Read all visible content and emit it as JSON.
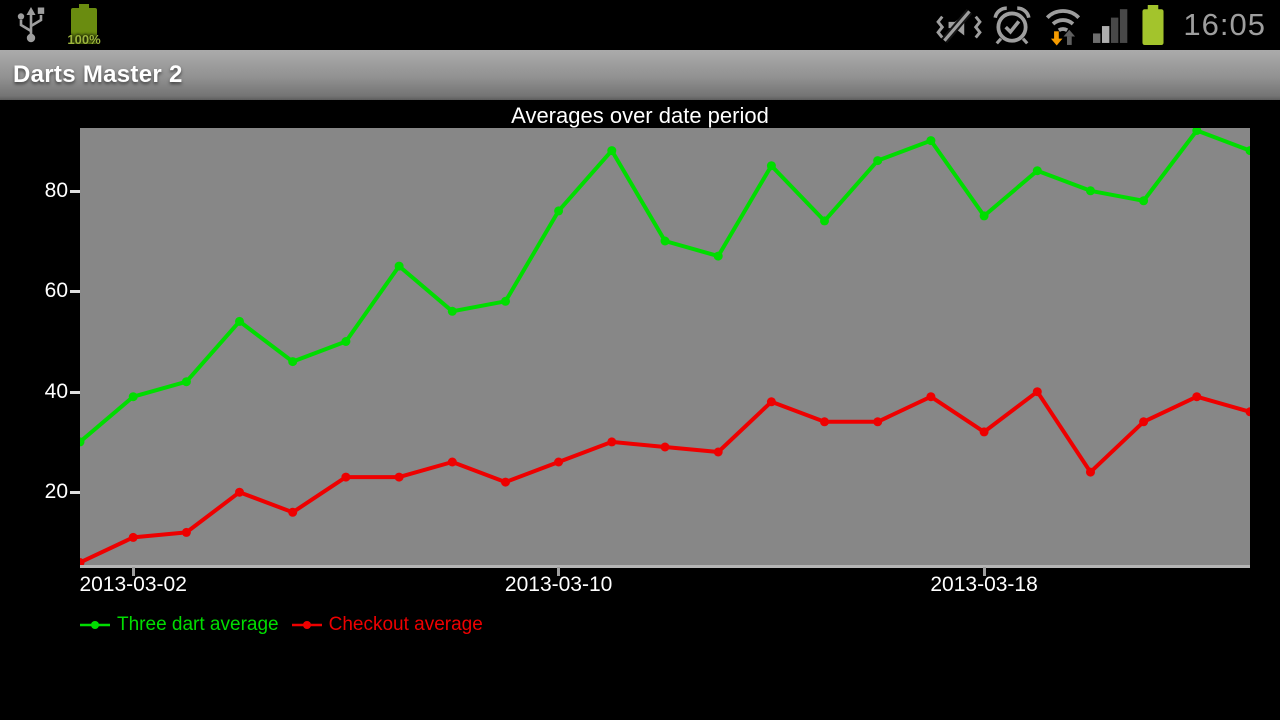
{
  "status_bar": {
    "battery_percent": "100%",
    "time": "16:05",
    "left_icons": [
      "usb-icon",
      "battery-charging-icon"
    ],
    "right_icons": [
      "vibrate-icon",
      "alarm-icon",
      "wifi-icon",
      "signal-icon",
      "battery-icon"
    ],
    "accent_orange": "#f59b00",
    "icon_gray": "#9e9e9e",
    "battery_green": "#a3c42c"
  },
  "app": {
    "title": "Darts Master 2"
  },
  "chart_data": {
    "type": "line",
    "title": "Averages over date period",
    "x": [
      "2013-03-01",
      "2013-03-02",
      "2013-03-03",
      "2013-03-04",
      "2013-03-05",
      "2013-03-06",
      "2013-03-07",
      "2013-03-08",
      "2013-03-09",
      "2013-03-10",
      "2013-03-11",
      "2013-03-12",
      "2013-03-13",
      "2013-03-14",
      "2013-03-15",
      "2013-03-16",
      "2013-03-17",
      "2013-03-18",
      "2013-03-19",
      "2013-03-20",
      "2013-03-21",
      "2013-03-22",
      "2013-03-23"
    ],
    "series": [
      {
        "name": "Three dart average",
        "color": "#00dd00",
        "values": [
          30,
          39,
          42,
          54,
          46,
          50,
          65,
          56,
          58,
          76,
          88,
          70,
          67,
          85,
          74,
          86,
          90,
          75,
          84,
          80,
          78,
          92,
          88
        ]
      },
      {
        "name": "Checkout average",
        "color": "#ee0000",
        "values": [
          6,
          11,
          12,
          20,
          16,
          23,
          23,
          26,
          22,
          26,
          30,
          29,
          28,
          38,
          34,
          34,
          39,
          32,
          40,
          24,
          34,
          39,
          36
        ]
      }
    ],
    "yticks": [
      20,
      40,
      60,
      80
    ],
    "ylim": [
      5.5,
      92.5
    ],
    "xtick_labels": [
      "2013-03-02",
      "2013-03-10",
      "2013-03-18"
    ],
    "xtick_indices": [
      1,
      9,
      17
    ],
    "grid": false,
    "legend_position": "bottom-left",
    "plot_bg": "#878787",
    "axis_color": "#b5b5b5",
    "label_color": "#ffffff"
  }
}
